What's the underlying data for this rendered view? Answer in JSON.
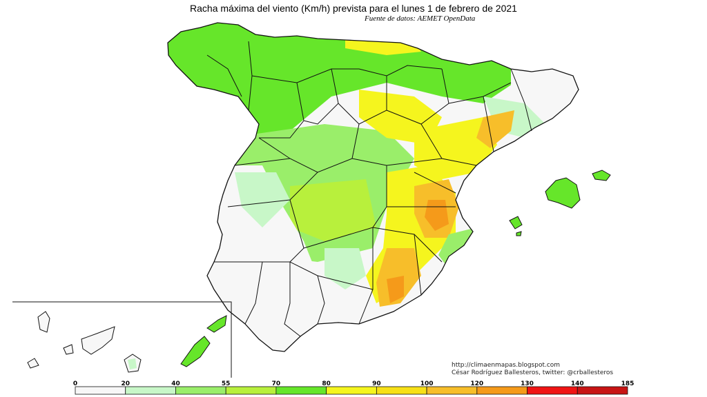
{
  "title": "Racha máxima del viento (Km/h) prevista para el lunes 1 de febrero de 2021",
  "subtitle": "Fuente de datos: AEMET OpenData",
  "credits": {
    "blog": "http://climaenmapas.blogspot.com",
    "author": "César Rodríguez Ballesteros, twitter: @crballesteros"
  },
  "legend": {
    "breaks": [
      "0",
      "20",
      "40",
      "55",
      "70",
      "80",
      "90",
      "100",
      "120",
      "130",
      "140",
      "185"
    ],
    "colors": [
      "#f7f7f7",
      "#c8f7c8",
      "#9aee6a",
      "#b8f03c",
      "#66e62a",
      "#f5f51e",
      "#f7e017",
      "#f7be2a",
      "#f59a1a",
      "#f01414",
      "#c81414",
      "#a01414"
    ]
  },
  "map_colors": {
    "calm": "#f7f7f7",
    "light": "#c8f7c8",
    "green": "#66e62a",
    "lime": "#b8f03c",
    "yellow": "#f5f51e",
    "orange": "#f7be2a",
    "dark_orange": "#f59a1a"
  }
}
